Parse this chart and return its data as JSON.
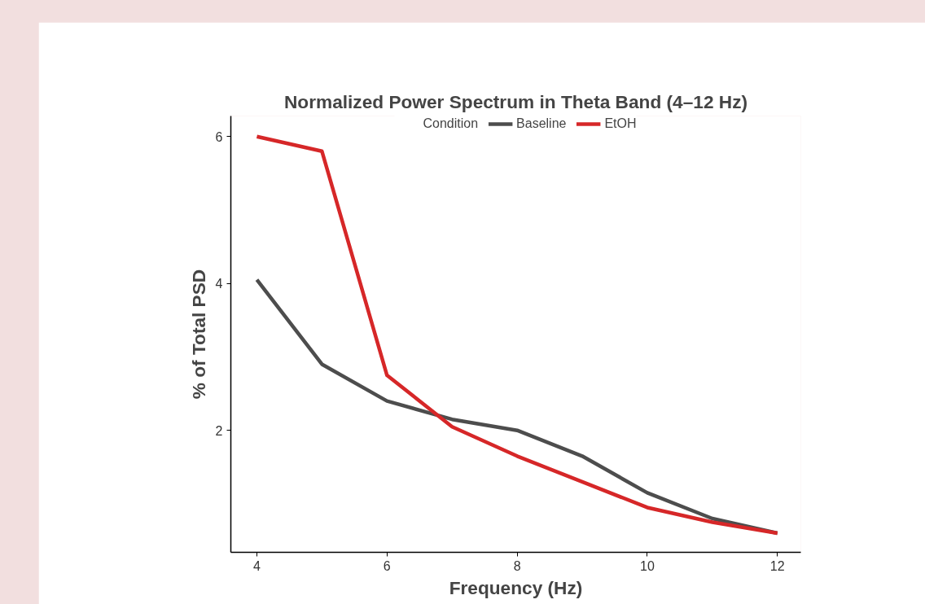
{
  "chart_data": {
    "type": "line",
    "title": "Normalized Power Spectrum in Theta Band (4–12 Hz)",
    "xlabel": "Frequency (Hz)",
    "ylabel": "% of Total PSD",
    "legend_title": "Condition",
    "legend": "top",
    "grid": false,
    "marker": "none",
    "line_style": "solid",
    "x": [
      4,
      5,
      6,
      7,
      8,
      9,
      10,
      11,
      12
    ],
    "series": [
      {
        "name": "Baseline",
        "color": "#4d4d4d",
        "values": [
          4.05,
          2.9,
          2.4,
          2.15,
          2.0,
          1.65,
          1.15,
          0.8,
          0.6
        ]
      },
      {
        "name": "EtOH",
        "color": "#d62728",
        "values": [
          6.0,
          5.8,
          2.75,
          2.05,
          1.65,
          1.3,
          0.95,
          0.75,
          0.6
        ]
      }
    ],
    "xlim": [
      3.6,
      12.36
    ],
    "ylim": [
      0.34,
      6.28
    ],
    "xticks": [
      4,
      6,
      8,
      10,
      12
    ],
    "yticks": [
      2,
      4,
      6
    ]
  }
}
